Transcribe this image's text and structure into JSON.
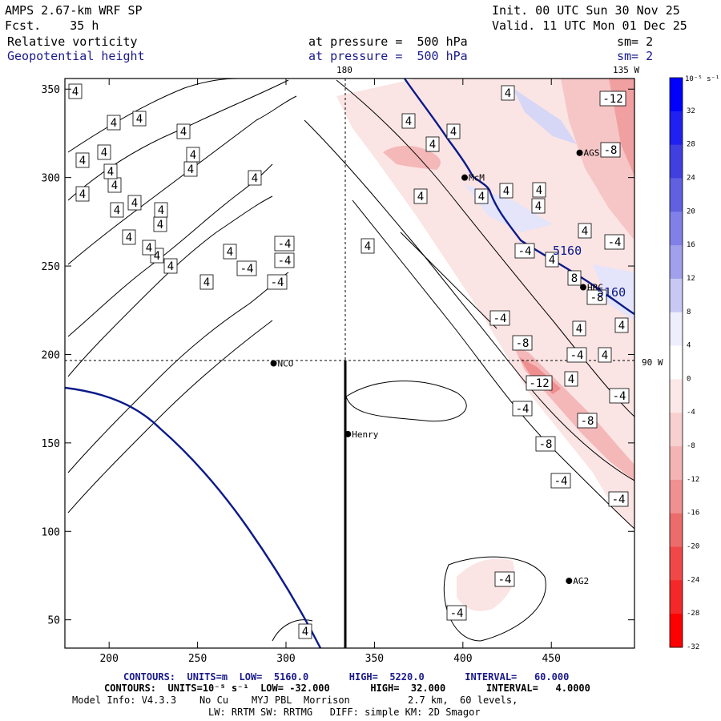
{
  "header": {
    "model_title": "AMPS 2.67-km WRF SP",
    "forecast": "Fcst.    35 h",
    "init": "Init. 00 UTC Sun 30 Nov 25",
    "valid": "Valid. 11 UTC Mon 01 Dec 25",
    "field1": "Relative vorticity",
    "field2": "Geopotential height",
    "pressure1": "at pressure =  500 hPa",
    "pressure2": "at pressure =  500 hPa",
    "sm1": "sm= 2",
    "sm2": "sm= 2",
    "lon_top_left": "180",
    "lon_top_right": "135 W",
    "lon_right": "90 W"
  },
  "colors": {
    "height_contour": "#0a1a8a",
    "vort_contour": "#000000"
  },
  "stations": [
    {
      "name": "NCO",
      "x": 293,
      "y": 195
    },
    {
      "name": "Henry",
      "x": 335,
      "y": 155
    },
    {
      "name": "McM",
      "x": 401,
      "y": 300
    },
    {
      "name": "AGS",
      "x": 466,
      "y": 314
    },
    {
      "name": "HRC",
      "x": 468,
      "y": 238
    },
    {
      "name": "AG2",
      "x": 460,
      "y": 72
    }
  ],
  "colorbar": {
    "unit_label": "10⁻⁵ s⁻¹",
    "levels": [
      32,
      28,
      24,
      20,
      16,
      12,
      8,
      4,
      0,
      -4,
      -8,
      -12,
      -16,
      -20,
      -24,
      -28,
      -32
    ],
    "colors": [
      "#0000ff",
      "#2020f0",
      "#4040e0",
      "#6060e0",
      "#8080e8",
      "#a0a0ec",
      "#c8c8f4",
      "#eeeefc",
      "#ffffff",
      "#fce8e8",
      "#f8d0d0",
      "#f4b4b4",
      "#f09090",
      "#ec6c6c",
      "#f04848",
      "#f42828",
      "#ff0000"
    ]
  },
  "chart_data": {
    "type": "contour_map",
    "title": "Relative vorticity / Geopotential height at 500 hPa",
    "x_ticks": [
      200,
      250,
      300,
      350,
      400,
      450
    ],
    "y_ticks": [
      50,
      100,
      150,
      200,
      250,
      300,
      350
    ],
    "xlim": [
      175,
      497
    ],
    "ylim": [
      34,
      356
    ],
    "height_contour_labels": [
      "5160",
      "5160"
    ],
    "vorticity_labels": [
      {
        "text": "4",
        "x": 258,
        "y": 352
      },
      {
        "text": "-4",
        "x": 346,
        "y": 352
      },
      {
        "text": "-4",
        "x": 308,
        "y": 335
      },
      {
        "text": "4",
        "x": 213,
        "y": 332
      },
      {
        "text": "4",
        "x": 196,
        "y": 319
      },
      {
        "text": "-4",
        "x": 355,
        "y": 325
      },
      {
        "text": "4",
        "x": 186,
        "y": 309
      },
      {
        "text": "4",
        "x": 287,
        "y": 314
      },
      {
        "text": "-4",
        "x": 355,
        "y": 304
      },
      {
        "text": "4",
        "x": 459,
        "y": 307
      },
      {
        "text": "4",
        "x": 161,
        "y": 296
      },
      {
        "text": "4",
        "x": 200,
        "y": 280
      },
      {
        "text": "4",
        "x": 146,
        "y": 262
      },
      {
        "text": "4",
        "x": 201,
        "y": 262
      },
      {
        "text": "4",
        "x": 168,
        "y": 253
      },
      {
        "text": "4",
        "x": 103,
        "y": 242
      },
      {
        "text": "4",
        "x": 143,
        "y": 231
      },
      {
        "text": "4",
        "x": 318,
        "y": 222
      },
      {
        "text": "4",
        "x": 138,
        "y": 214
      },
      {
        "text": "4",
        "x": 238,
        "y": 211
      },
      {
        "text": "4",
        "x": 103,
        "y": 200
      },
      {
        "text": "4",
        "x": 130,
        "y": 190
      },
      {
        "text": "4",
        "x": 241,
        "y": 193
      },
      {
        "text": "4",
        "x": 540,
        "y": 180
      },
      {
        "text": "4",
        "x": 229,
        "y": 164
      },
      {
        "text": "4",
        "x": 566,
        "y": 164
      },
      {
        "text": "4",
        "x": 142,
        "y": 153
      },
      {
        "text": "4",
        "x": 174,
        "y": 148
      },
      {
        "text": "4",
        "x": 510,
        "y": 151
      },
      {
        "text": "4",
        "x": 94,
        "y": 114
      },
      {
        "text": "4",
        "x": 525,
        "y": 245
      },
      {
        "text": "4",
        "x": 601,
        "y": 245
      },
      {
        "text": "4",
        "x": 672,
        "y": 257
      },
      {
        "text": "4",
        "x": 632,
        "y": 238
      },
      {
        "text": "4",
        "x": 673,
        "y": 237
      },
      {
        "text": "4",
        "x": 730,
        "y": 288
      },
      {
        "text": "4",
        "x": 689,
        "y": 324
      },
      {
        "text": "4",
        "x": 723,
        "y": 410
      },
      {
        "text": "4",
        "x": 776,
        "y": 406
      },
      {
        "text": "4",
        "x": 713,
        "y": 473
      },
      {
        "text": "4",
        "x": 755,
        "y": 443
      },
      {
        "text": "4",
        "x": 634,
        "y": 116
      },
      {
        "text": "4",
        "x": 381,
        "y": 788
      },
      {
        "text": "-12",
        "x": 765,
        "y": 123
      },
      {
        "text": "-4",
        "x": 767,
        "y": 302
      },
      {
        "text": "-4",
        "x": 655,
        "y": 313
      },
      {
        "text": "-4",
        "x": 624,
        "y": 397
      },
      {
        "text": "-8",
        "x": 652,
        "y": 428
      },
      {
        "text": "-4",
        "x": 720,
        "y": 443
      },
      {
        "text": "-12",
        "x": 673,
        "y": 478
      },
      {
        "text": "-4",
        "x": 773,
        "y": 494
      },
      {
        "text": "-4",
        "x": 652,
        "y": 510
      },
      {
        "text": "-8",
        "x": 733,
        "y": 525
      },
      {
        "text": "-8",
        "x": 681,
        "y": 554
      },
      {
        "text": "-4",
        "x": 700,
        "y": 600
      },
      {
        "text": "-4",
        "x": 772,
        "y": 623
      },
      {
        "text": "-4",
        "x": 630,
        "y": 723
      },
      {
        "text": "-4",
        "x": 570,
        "y": 765
      },
      {
        "text": "-8",
        "x": 745,
        "y": 371
      },
      {
        "text": "8",
        "x": 717,
        "y": 347
      },
      {
        "text": "-8",
        "x": 762,
        "y": 187
      }
    ]
  },
  "footer": {
    "contour1": "CONTOURS:  UNITS=m  LOW=  5160.0       HIGH=  5220.0       INTERVAL=   60.000",
    "contour2": "CONTOURS:  UNITS=10⁻⁵ s⁻¹  LOW= -32.000       HIGH=  32.000       INTERVAL=   4.0000",
    "model_info": "Model Info: V4.3.3    No Cu    MYJ PBL  Morrison          2.7 km,  60 levels,",
    "physics": "LW: RRTM SW: RRTMG   DIFF: simple KM: 2D Smagor"
  }
}
